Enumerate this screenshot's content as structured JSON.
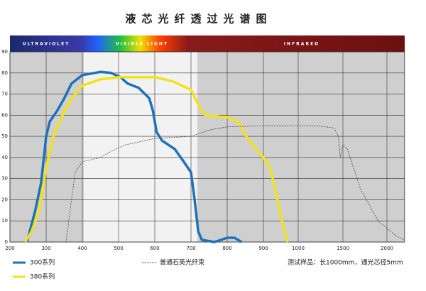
{
  "chart_data": {
    "type": "line",
    "title": "液芯光纤透过光谱图",
    "band_labels": [
      "ULTRAVIOLET",
      "VISIBLE LIGHT",
      "INFRARED"
    ],
    "note": "测试样品：长1000mm，通光芯径5mm",
    "xlim": [
      200,
      2200
    ],
    "xticks": [
      200,
      300,
      400,
      500,
      600,
      700,
      800,
      900,
      1000,
      1500,
      2000
    ],
    "ylim": [
      0,
      90
    ],
    "yticks": [
      0,
      10,
      20,
      30,
      40,
      50,
      60,
      70,
      80,
      90
    ],
    "grid": true,
    "series": [
      {
        "name": "300系列",
        "color": "#1f72b8",
        "style": "solid",
        "x": [
          247,
          270,
          286,
          300,
          310,
          330,
          350,
          370,
          400,
          450,
          480,
          505,
          525,
          555,
          585,
          595,
          605,
          620,
          655,
          680,
          700,
          710,
          720,
          730,
          765,
          800,
          820,
          840
        ],
        "values": [
          0,
          15,
          28,
          50,
          57,
          62,
          68,
          75,
          79,
          80.5,
          80,
          78,
          75,
          73,
          68,
          62,
          52,
          48,
          44,
          38,
          33,
          20,
          5,
          1,
          0,
          2,
          2,
          0
        ]
      },
      {
        "name": "380系列",
        "color": "#f2e21c",
        "style": "solid",
        "x": [
          242,
          260,
          280,
          300,
          320,
          350,
          380,
          400,
          450,
          500,
          600,
          650,
          700,
          720,
          740,
          800,
          830,
          860,
          900,
          920,
          940,
          960,
          970
        ],
        "values": [
          0,
          5,
          15,
          35,
          50,
          62,
          70,
          74,
          77,
          78,
          78,
          76,
          72,
          65,
          60,
          59,
          57,
          48,
          40,
          35,
          20,
          5,
          0
        ]
      },
      {
        "name": "普通石英光纤束",
        "color": "#444",
        "style": "dashed",
        "x": [
          355,
          370,
          380,
          400,
          450,
          480,
          520,
          600,
          700,
          750,
          800,
          900,
          1000,
          1200,
          1400,
          1450,
          1470,
          1500,
          1550,
          1700,
          1900,
          2100,
          2200
        ],
        "values": [
          0,
          20,
          33,
          38,
          40,
          43,
          46,
          49,
          50,
          53,
          54.5,
          55,
          55,
          55,
          54,
          50,
          40,
          46,
          44,
          25,
          10,
          3,
          1
        ]
      }
    ]
  }
}
